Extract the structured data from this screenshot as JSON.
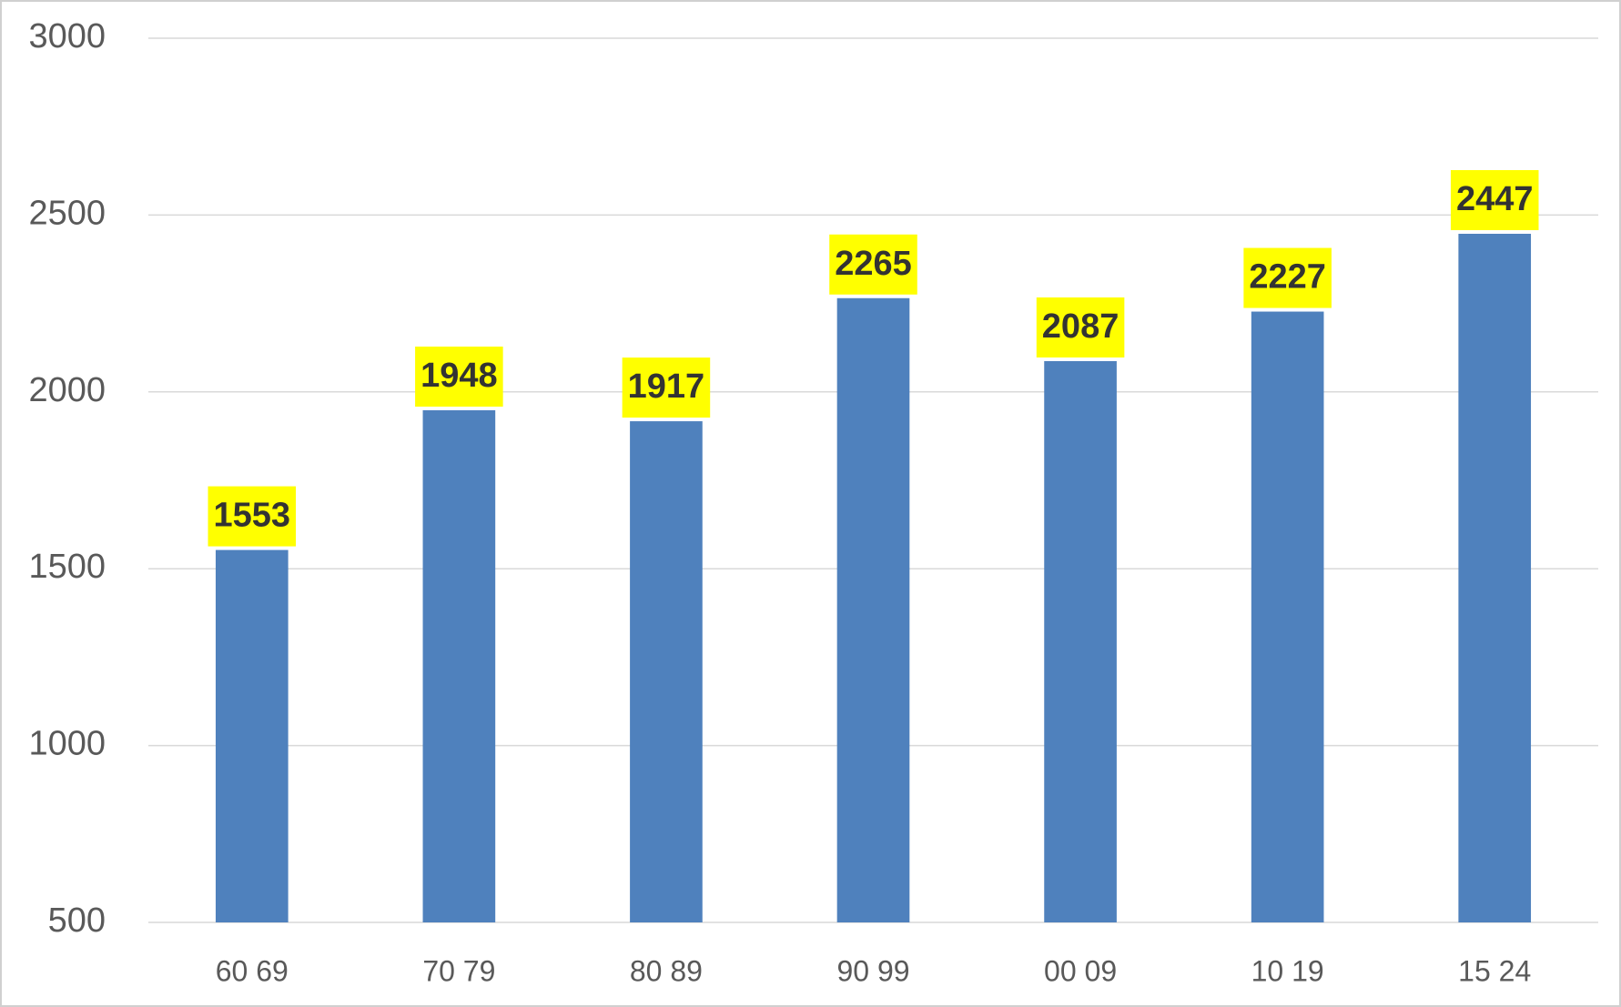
{
  "chart_data": {
    "type": "bar",
    "categories": [
      "60 69",
      "70 79",
      "80 89",
      "90 99",
      "00 09",
      "10 19",
      "15 24"
    ],
    "values": [
      1553,
      1948,
      1917,
      2265,
      2087,
      2227,
      2447
    ],
    "color": "#4f81bd",
    "label_background": "#ffff00",
    "ylim": [
      500,
      3000
    ],
    "yticks": [
      500,
      1000,
      1500,
      2000,
      2500,
      3000
    ],
    "grid": true
  }
}
